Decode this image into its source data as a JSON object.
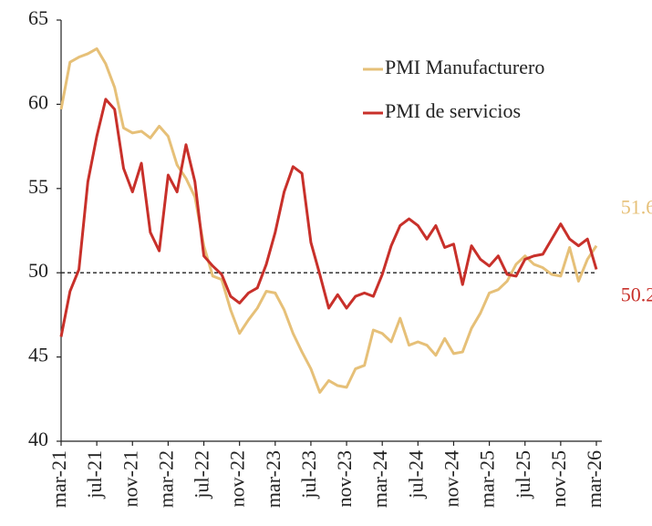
{
  "chart_data": {
    "type": "line",
    "categories": [
      "mar-21",
      null,
      null,
      null,
      "jul-21",
      null,
      null,
      null,
      "nov-21",
      null,
      null,
      null,
      "mar-22",
      null,
      null,
      null,
      "jul-22",
      null,
      null,
      null,
      "nov-22",
      null,
      null,
      null,
      "mar-23",
      null,
      null,
      null,
      "jul-23",
      null,
      null,
      null,
      "nov-23",
      null,
      null,
      null,
      "mar-24",
      null,
      null,
      null,
      "jul-24",
      null,
      null,
      null,
      "nov-24",
      null,
      null,
      null,
      "mar-25",
      null,
      null,
      null,
      "jul-25",
      null,
      null,
      null,
      "nov-25",
      null,
      null,
      null,
      "mar-26"
    ],
    "series": [
      {
        "name": "PMI Manufacturero",
        "color": "#e6c078",
        "values": [
          59.7,
          62.5,
          62.8,
          63.0,
          63.3,
          62.4,
          61.0,
          58.6,
          58.3,
          58.4,
          58.0,
          58.7,
          58.1,
          56.4,
          55.6,
          54.5,
          51.6,
          49.8,
          49.6,
          47.8,
          46.4,
          47.2,
          47.9,
          48.9,
          48.8,
          47.8,
          46.4,
          45.3,
          44.3,
          42.9,
          43.6,
          43.3,
          43.2,
          44.3,
          44.5,
          46.6,
          46.4,
          45.9,
          47.3,
          45.7,
          45.9,
          45.7,
          45.1,
          46.1,
          45.2,
          45.3,
          46.7,
          47.6,
          48.8,
          49.0,
          49.5,
          50.5,
          51.0,
          50.5,
          50.3,
          49.9,
          49.8,
          51.5,
          49.5,
          50.8,
          51.6
        ]
      },
      {
        "name": "PMI de servicios",
        "color": "#c8302a",
        "values": [
          46.2,
          48.9,
          50.2,
          55.4,
          58.1,
          60.3,
          59.7,
          56.2,
          54.8,
          56.5,
          52.4,
          51.3,
          55.8,
          54.8,
          57.6,
          55.4,
          51.0,
          50.4,
          49.9,
          48.6,
          48.2,
          48.8,
          49.1,
          50.5,
          52.4,
          54.8,
          56.3,
          55.9,
          51.8,
          49.9,
          47.9,
          48.7,
          47.9,
          48.6,
          48.8,
          48.6,
          49.9,
          51.6,
          52.8,
          53.2,
          52.8,
          52.0,
          52.8,
          51.5,
          51.7,
          49.3,
          51.6,
          50.8,
          50.4,
          51.0,
          49.9,
          49.8,
          50.8,
          51.0,
          51.1,
          52.0,
          52.9,
          52.0,
          51.6,
          52.0,
          50.2
        ]
      }
    ],
    "ylim": [
      40,
      65
    ],
    "yticks": [
      40,
      45,
      50,
      55,
      60,
      65
    ],
    "reference_line": 50,
    "legend": "upper right",
    "grid": false
  }
}
